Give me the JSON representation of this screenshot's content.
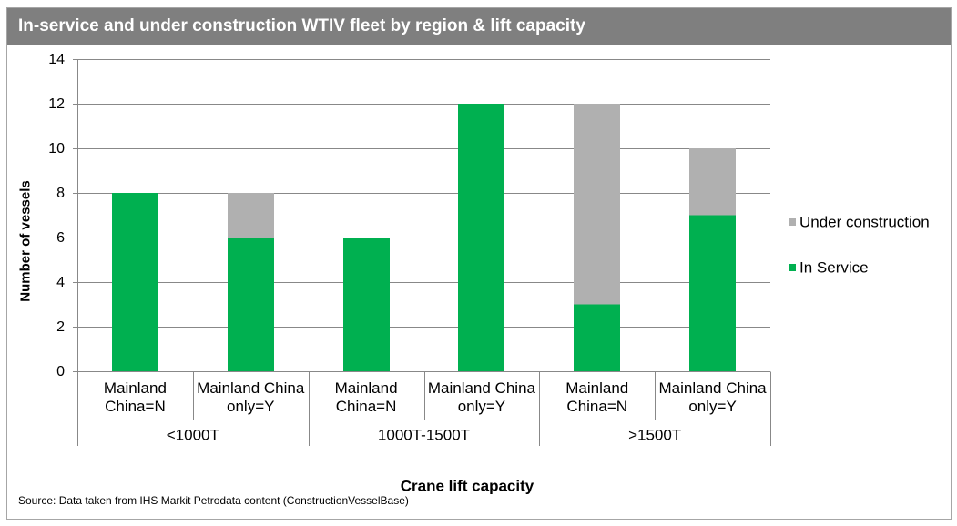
{
  "colors": {
    "title_bar": "#7f7f7f",
    "title_text": "#ffffff",
    "gridline": "#888888"
  },
  "source": "Source: Data taken from IHS Markit Petrodata content (ConstructionVesselBase)",
  "chart_data": {
    "type": "bar",
    "stacked": true,
    "title": "In-service and under construction WTIV fleet by region & lift capacity",
    "xlabel": "Crane lift capacity",
    "ylabel": "Number of vessels",
    "ylim": [
      0,
      14
    ],
    "yticks": [
      0,
      2,
      4,
      6,
      8,
      10,
      12,
      14
    ],
    "grid": true,
    "legend": "right",
    "groups": [
      {
        "label": "<1000T",
        "categories": [
          "Mainland China=N",
          "Mainland China only=Y"
        ]
      },
      {
        "label": "1000T-1500T",
        "categories": [
          "Mainland China=N",
          "Mainland China only=Y"
        ]
      },
      {
        "label": ">1500T",
        "categories": [
          "Mainland China=N",
          "Mainland China only=Y"
        ]
      }
    ],
    "series": [
      {
        "name": "In Service",
        "color": "#00b050",
        "values": [
          8,
          6,
          6,
          12,
          3,
          7
        ]
      },
      {
        "name": "Under construction",
        "color": "#b0b0b0",
        "values": [
          0,
          2,
          0,
          0,
          9,
          3
        ]
      }
    ]
  }
}
